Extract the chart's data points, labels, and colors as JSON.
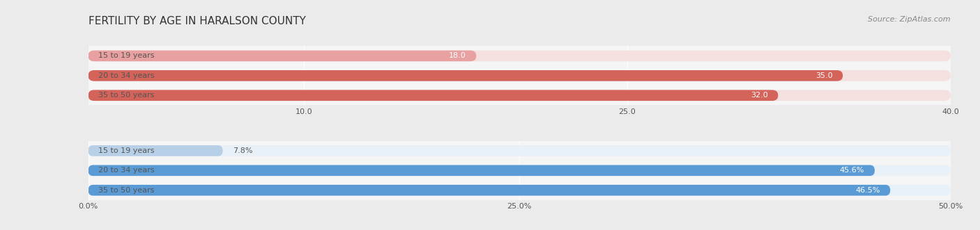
{
  "title": "FERTILITY BY AGE IN HARALSON COUNTY",
  "source": "Source: ZipAtlas.com",
  "top_section": {
    "bars": [
      {
        "label": "15 to 19 years",
        "value": 18.0,
        "display": "18.0"
      },
      {
        "label": "20 to 34 years",
        "value": 35.0,
        "display": "35.0"
      },
      {
        "label": "35 to 50 years",
        "value": 32.0,
        "display": "32.0"
      }
    ],
    "xlim": [
      0,
      40
    ],
    "xticks": [
      10.0,
      25.0,
      40.0
    ],
    "xtick_labels": [
      "10.0",
      "25.0",
      "40.0"
    ],
    "bar_colors": [
      "#e8a0a0",
      "#d4635a",
      "#d4635a"
    ],
    "bar_bg_colors": [
      "#f5e0e0",
      "#f5e0e0",
      "#f5e0e0"
    ],
    "label_color": "#555555",
    "value_color_inside": "#ffffff",
    "value_color_outside": "#555555"
  },
  "bottom_section": {
    "bars": [
      {
        "label": "15 to 19 years",
        "value": 7.8,
        "display": "7.8%"
      },
      {
        "label": "20 to 34 years",
        "value": 45.6,
        "display": "45.6%"
      },
      {
        "label": "35 to 50 years",
        "value": 46.5,
        "display": "46.5%"
      }
    ],
    "xlim": [
      0,
      50
    ],
    "xticks": [
      0.0,
      25.0,
      50.0
    ],
    "xtick_labels": [
      "0.0%",
      "25.0%",
      "50.0%"
    ],
    "bar_colors": [
      "#b8cfe8",
      "#5b9bd5",
      "#5b9bd5"
    ],
    "bar_bg_colors": [
      "#e8f0f8",
      "#e8f0f8",
      "#e8f0f8"
    ],
    "label_color": "#555555",
    "value_color_inside": "#ffffff",
    "value_color_outside": "#555555"
  },
  "bar_height": 0.55,
  "bg_color": "#ebebeb",
  "plot_bg_color": "#f5f5f5",
  "title_color": "#333333",
  "title_fontsize": 11,
  "source_fontsize": 8,
  "label_fontsize": 8,
  "value_fontsize": 8,
  "tick_fontsize": 8
}
